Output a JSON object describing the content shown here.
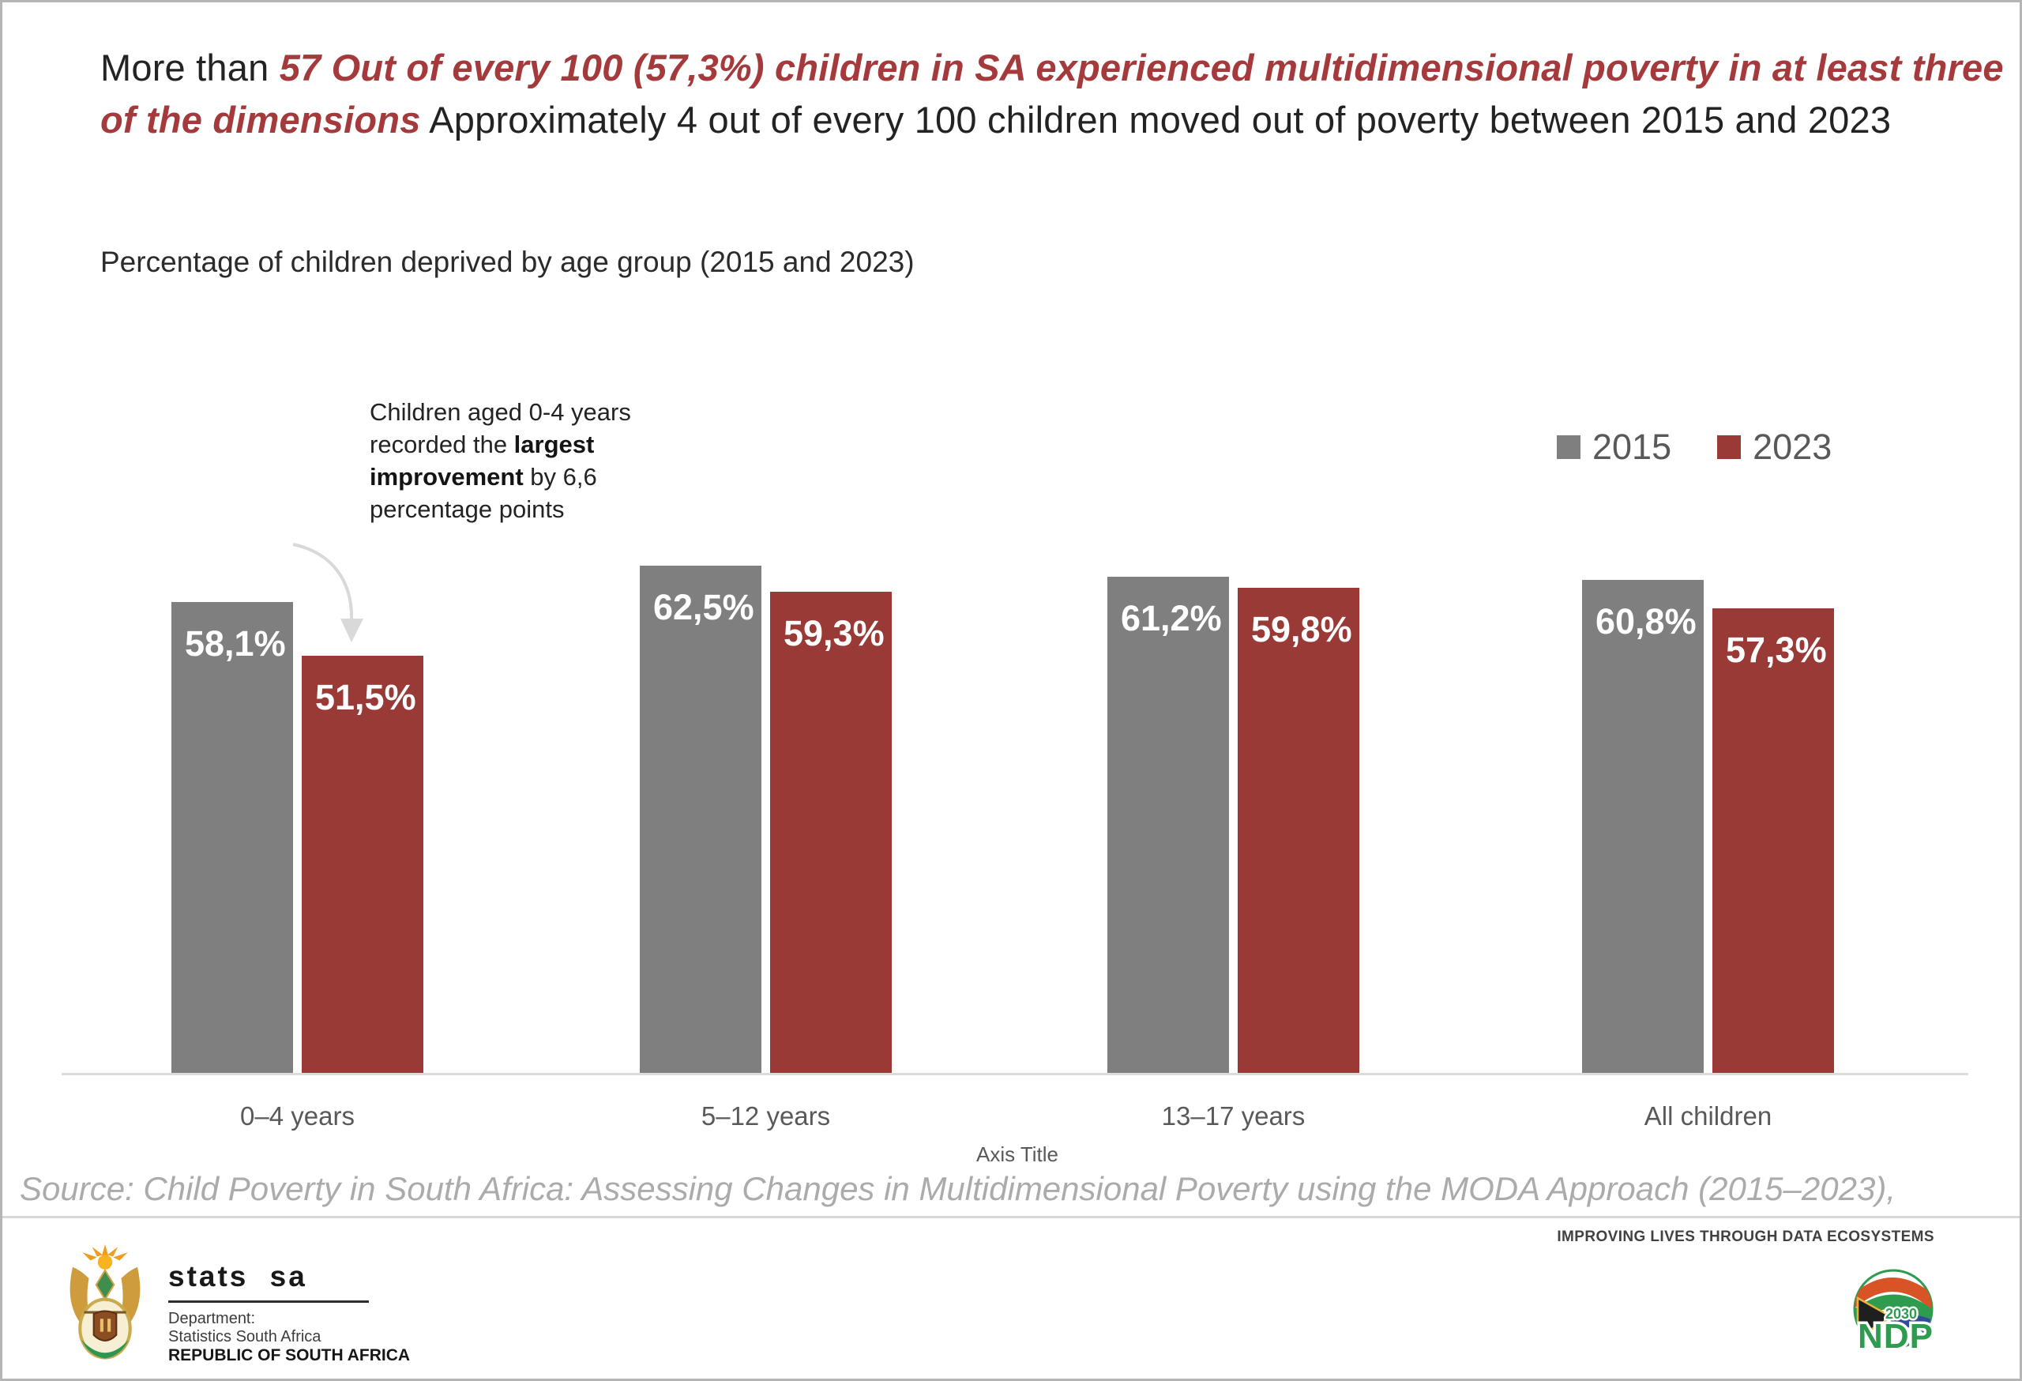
{
  "title": {
    "segments": [
      {
        "text": "More than ",
        "style": "plain"
      },
      {
        "text": "57 Out of every 100 (57,3%) children in SA experienced multidimensional poverty in at least three of the dimensions",
        "style": "red"
      },
      {
        "text": "  Approximately 4 out of every 100 children moved out of poverty between 2015 and 2023",
        "style": "plain"
      }
    ]
  },
  "subtitle": "Percentage of children deprived by age group (2015 and 2023)",
  "annotation": {
    "segments": [
      {
        "text": "Children aged 0-4 years recorded the ",
        "style": "plain"
      },
      {
        "text": "largest improvement",
        "style": "bold"
      },
      {
        "text": " by 6,6 percentage points",
        "style": "plain"
      }
    ]
  },
  "legend": [
    {
      "label": "2015",
      "color": "#7F7F7F"
    },
    {
      "label": "2023",
      "color": "#993A37"
    }
  ],
  "chart_data": {
    "type": "bar",
    "categories": [
      "0–4 years",
      "5–12 years",
      "13–17 years",
      "All children"
    ],
    "series": [
      {
        "name": "2015",
        "color": "#7F7F7F",
        "values": [
          58.1,
          62.5,
          61.2,
          60.8
        ],
        "labels": [
          "58,1%",
          "62,5%",
          "61,2%",
          "60,8%"
        ]
      },
      {
        "name": "2023",
        "color": "#993A37",
        "values": [
          51.5,
          59.3,
          59.8,
          57.3
        ],
        "labels": [
          "51,5%",
          "59,3%",
          "59,8%",
          "57,3%"
        ]
      }
    ],
    "ylim": [
      0,
      65
    ],
    "ylabel": "",
    "xlabel": "",
    "axis_title_label": "Axis Title",
    "value_suffix": "%",
    "grid": false,
    "legend_position": "top-right"
  },
  "source": "Source: Child Poverty in South Africa: Assessing Changes in Multidimensional Poverty using the MODA Approach (2015–2023),",
  "footer": {
    "stats_sa": "stats sa",
    "dept_line1": "Department:",
    "dept_line2": "Statistics South Africa",
    "dept_line3": "REPUBLIC OF SOUTH AFRICA",
    "tagline": "IMPROVING LIVES THROUGH DATA ECOSYSTEMS",
    "ndp_year": "2030",
    "ndp": "NDP"
  },
  "colors": {
    "title_red": "#A43A3C",
    "bar_gray": "#7F7F7F",
    "bar_red": "#993A37",
    "axis_text": "#595959",
    "source_text": "#ABABAB",
    "arrow": "#D9D9D9"
  }
}
